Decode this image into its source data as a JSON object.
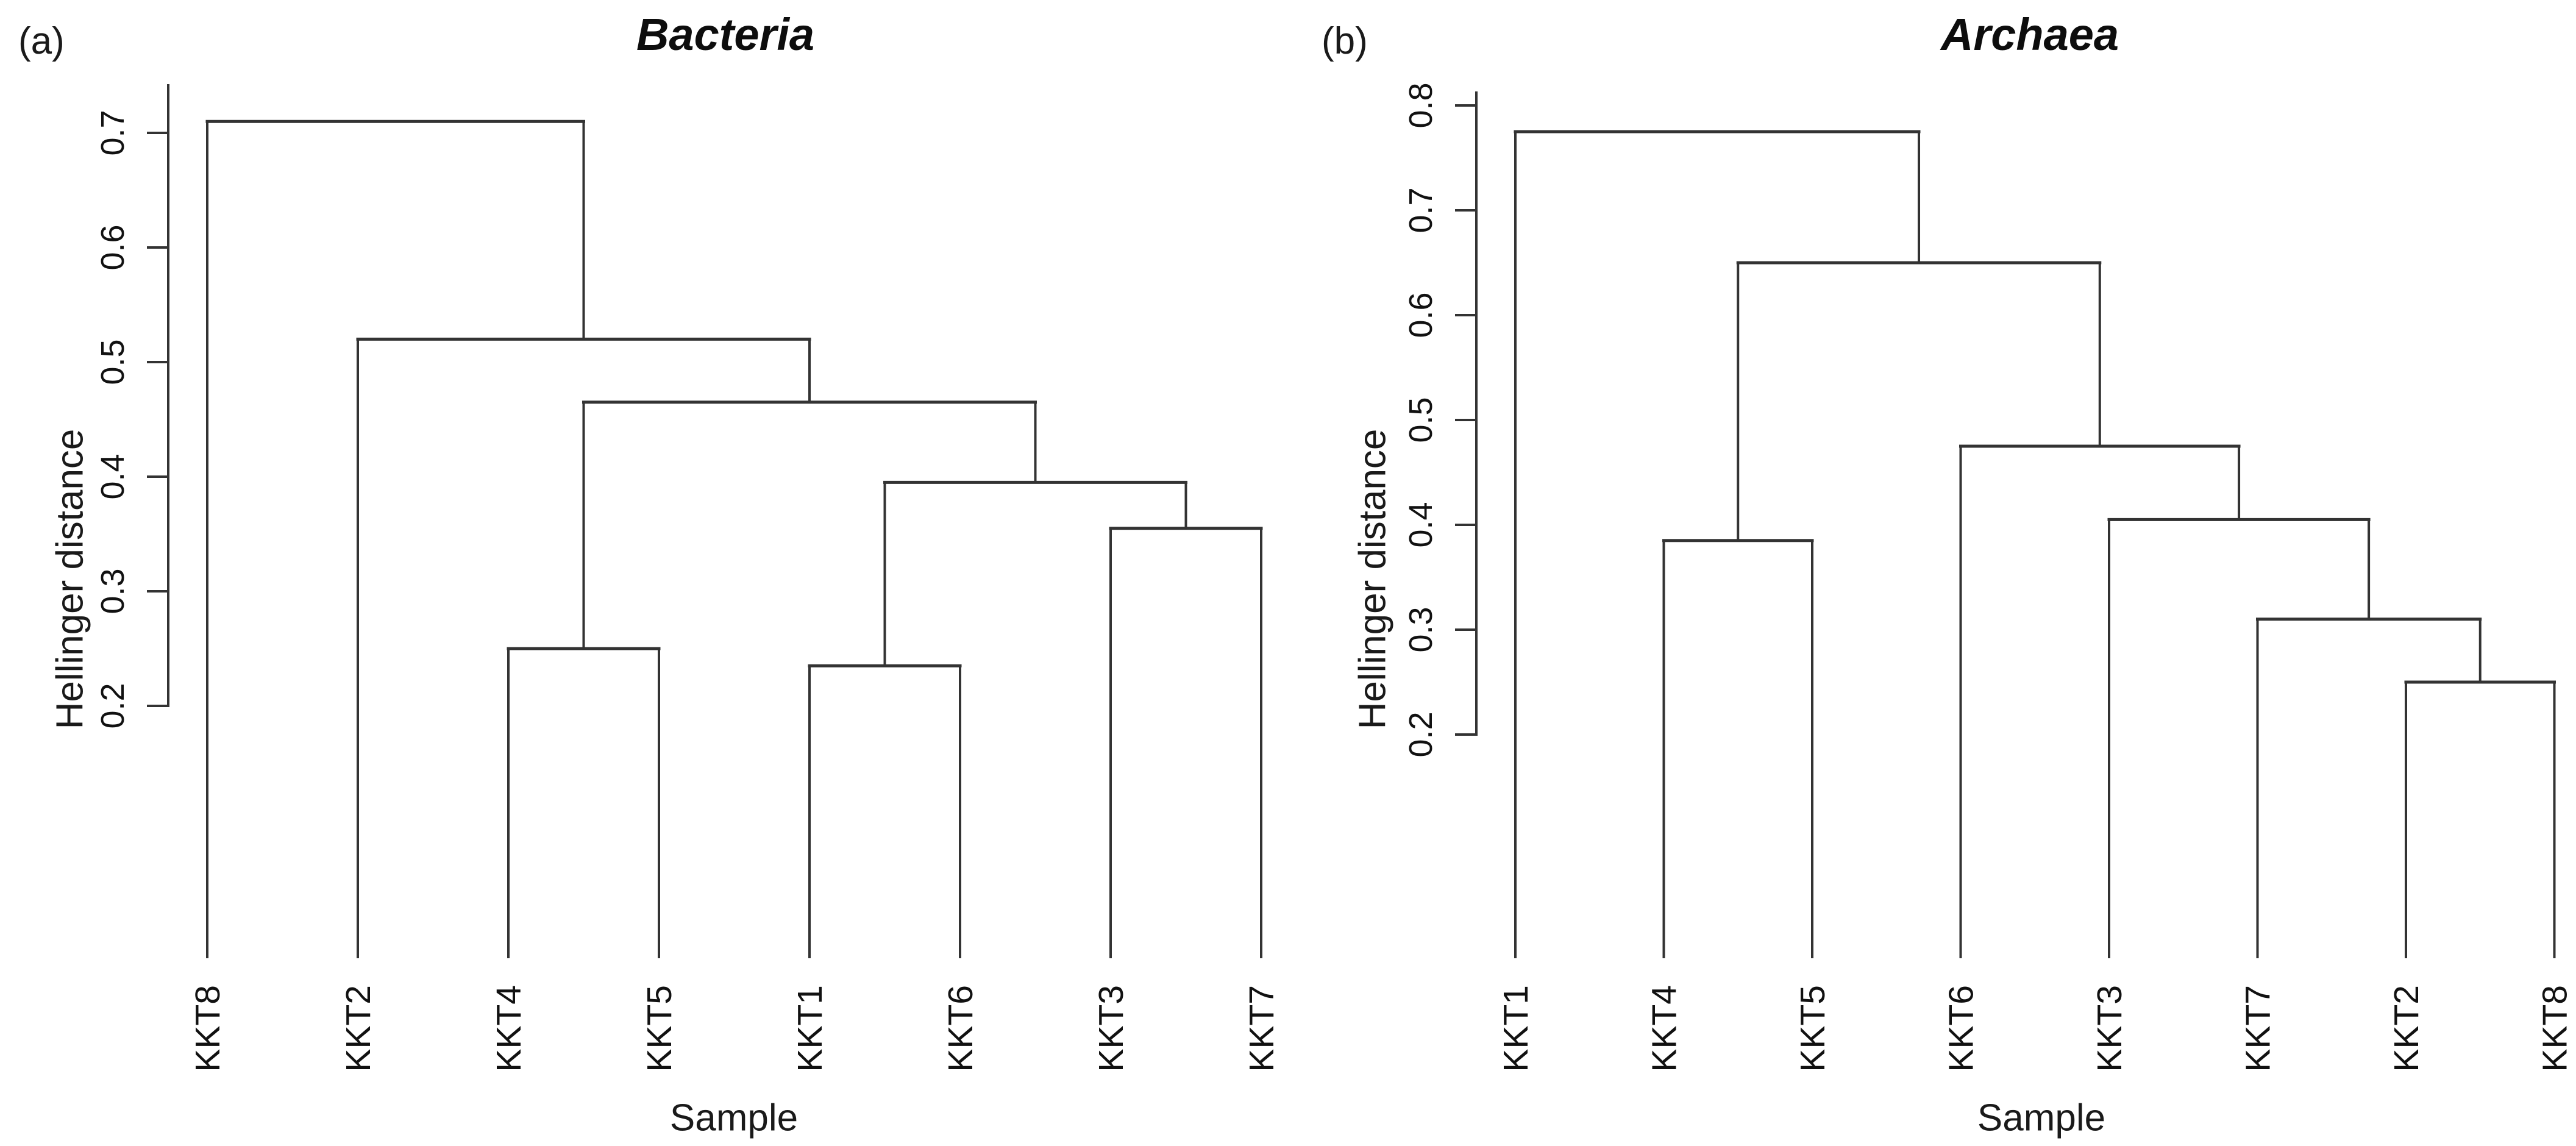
{
  "figure": {
    "panels": [
      {
        "panel_letter": "(a)",
        "title": "Bacteria",
        "xlabel": "Sample",
        "ylabel": "Hellinger distance"
      },
      {
        "panel_letter": "(b)",
        "title": "Archaea",
        "xlabel": "Sample",
        "ylabel": "Hellinger distance"
      }
    ],
    "line_color": "#333333",
    "text_color": "#111111",
    "background": "#ffffff"
  },
  "chart_data": [
    {
      "type": "dendrogram",
      "panel": "a",
      "title": "Bacteria",
      "xlabel": "Sample",
      "ylabel": "Hellinger distance",
      "leaves": [
        "KKT8",
        "KKT2",
        "KKT4",
        "KKT5",
        "KKT1",
        "KKT6",
        "KKT3",
        "KKT7"
      ],
      "yticks": [
        0.2,
        0.3,
        0.4,
        0.5,
        0.6,
        0.7
      ],
      "ylim": [
        0.2,
        0.74
      ],
      "grid": false,
      "merges": [
        {
          "id": "A",
          "children": [
            "KKT4",
            "KKT5"
          ],
          "height": 0.25
        },
        {
          "id": "B",
          "children": [
            "KKT1",
            "KKT6"
          ],
          "height": 0.235
        },
        {
          "id": "C",
          "children": [
            "KKT3",
            "KKT7"
          ],
          "height": 0.355
        },
        {
          "id": "D",
          "children": [
            "B",
            "C"
          ],
          "height": 0.395
        },
        {
          "id": "E",
          "children": [
            "A",
            "D"
          ],
          "height": 0.465
        },
        {
          "id": "F",
          "children": [
            "KKT2",
            "E"
          ],
          "height": 0.52
        },
        {
          "id": "G",
          "children": [
            "KKT8",
            "F"
          ],
          "height": 0.71
        }
      ]
    },
    {
      "type": "dendrogram",
      "panel": "b",
      "title": "Archaea",
      "xlabel": "Sample",
      "ylabel": "Hellinger distance",
      "leaves": [
        "KKT1",
        "KKT4",
        "KKT5",
        "KKT6",
        "KKT3",
        "KKT7",
        "KKT2",
        "KKT8"
      ],
      "yticks": [
        0.2,
        0.3,
        0.4,
        0.5,
        0.6,
        0.7,
        0.8
      ],
      "ylim": [
        0.2,
        0.81
      ],
      "grid": false,
      "merges": [
        {
          "id": "A",
          "children": [
            "KKT2",
            "KKT8"
          ],
          "height": 0.25
        },
        {
          "id": "B",
          "children": [
            "KKT7",
            "A"
          ],
          "height": 0.31
        },
        {
          "id": "C",
          "children": [
            "KKT3",
            "B"
          ],
          "height": 0.405
        },
        {
          "id": "D",
          "children": [
            "KKT6",
            "C"
          ],
          "height": 0.475
        },
        {
          "id": "E",
          "children": [
            "KKT4",
            "KKT5"
          ],
          "height": 0.385
        },
        {
          "id": "F",
          "children": [
            "E",
            "D"
          ],
          "height": 0.65
        },
        {
          "id": "G",
          "children": [
            "KKT1",
            "F"
          ],
          "height": 0.775
        }
      ]
    }
  ]
}
